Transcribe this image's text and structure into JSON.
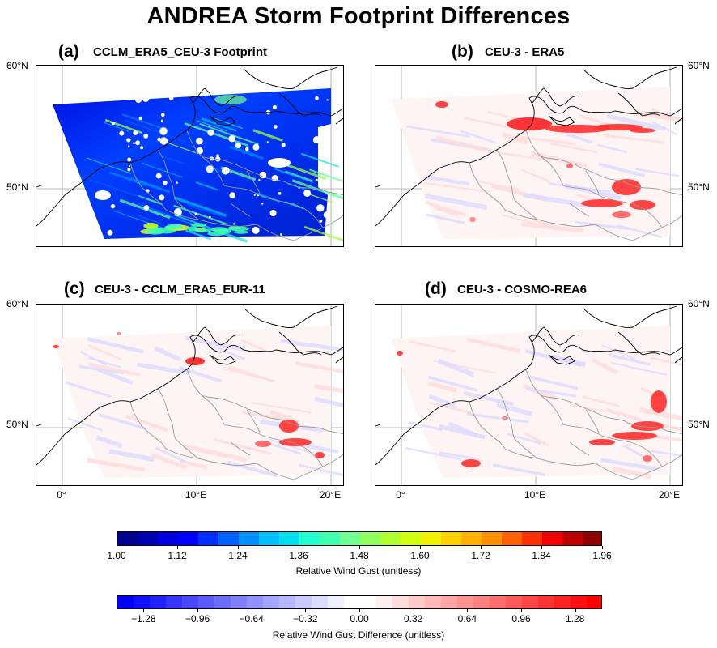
{
  "title": "ANDREA Storm Footprint Differences",
  "panels": [
    {
      "label": "(a)",
      "subtitle": "CCLM_ERA5_CEU-3 Footprint"
    },
    {
      "label": "(b)",
      "subtitle": "CEU-3 - ERA5"
    },
    {
      "label": "(c)",
      "subtitle": "CEU-3 - CCLM_ERA5_EUR-11"
    },
    {
      "label": "(d)",
      "subtitle": "CEU-3 - COSMO-REA6"
    }
  ],
  "lat_labels": [
    "60°N",
    "50°N"
  ],
  "lon_labels": [
    "0°",
    "10°E",
    "20°E"
  ],
  "colorbar1": {
    "label": "Relative Wind Gust (unitless)",
    "ticks": [
      "1.00",
      "1.12",
      "1.24",
      "1.36",
      "1.48",
      "1.60",
      "1.72",
      "1.84",
      "1.96"
    ],
    "range": [
      1.0,
      1.96
    ],
    "colors": [
      "#00008f",
      "#0000b0",
      "#0000df",
      "#0000ff",
      "#0030ff",
      "#0060ff",
      "#0090ff",
      "#00bfff",
      "#00dfef",
      "#20ffd0",
      "#40ffb0",
      "#70ff90",
      "#90ff60",
      "#b0ff30",
      "#d0ff10",
      "#f0f000",
      "#ffd000",
      "#ffb000",
      "#ff9000",
      "#ff6000",
      "#ff3000",
      "#f00000",
      "#c00000",
      "#8f0000"
    ]
  },
  "colorbar2": {
    "label": "Relative Wind Gust Difference (unitless)",
    "ticks": [
      "−1.28",
      "−0.96",
      "−0.64",
      "−0.32",
      "0.00",
      "0.32",
      "0.64",
      "0.96",
      "1.28"
    ],
    "range": [
      -1.44,
      1.44
    ],
    "colors": [
      "#0000ff",
      "#1010ff",
      "#2222ff",
      "#3535ff",
      "#4848ff",
      "#5a5aff",
      "#6d6dff",
      "#8080ff",
      "#9292ff",
      "#a5a5ff",
      "#b7b7ff",
      "#cacaff",
      "#dcdcff",
      "#efefff",
      "#ffffff",
      "#ffffff",
      "#ffefef",
      "#ffdcdc",
      "#ffcaca",
      "#ffb7b7",
      "#ffa5a5",
      "#ff9292",
      "#ff8080",
      "#ff6d6d",
      "#ff5a5a",
      "#ff4848",
      "#ff3535",
      "#ff2222",
      "#ff1010",
      "#ff0000"
    ]
  },
  "chart_data": [
    {
      "type": "heatmap",
      "title": "CCLM_ERA5_CEU-3 Footprint",
      "variable": "Relative Wind Gust",
      "value_range": [
        1.0,
        1.96
      ],
      "lat_ticks": [
        "60°N",
        "50°N"
      ],
      "lon_ticks": [
        "0°",
        "10°E",
        "20°E"
      ]
    },
    {
      "type": "heatmap",
      "title": "CEU-3 - ERA5",
      "variable": "Relative Wind Gust Difference",
      "value_range": [
        -1.44,
        1.44
      ]
    },
    {
      "type": "heatmap",
      "title": "CEU-3 - CCLM_ERA5_EUR-11",
      "variable": "Relative Wind Gust Difference",
      "value_range": [
        -1.44,
        1.44
      ]
    },
    {
      "type": "heatmap",
      "title": "CEU-3 - COSMO-REA6",
      "variable": "Relative Wind Gust Difference",
      "value_range": [
        -1.44,
        1.44
      ]
    }
  ]
}
